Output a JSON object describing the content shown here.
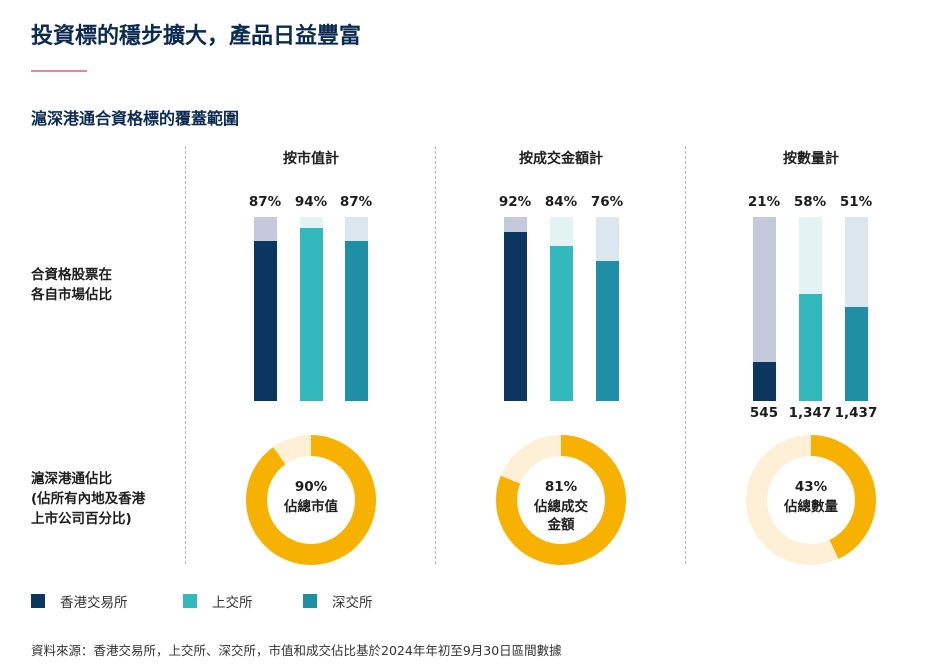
{
  "title": "投資標的穩步擴大，產品日益豐富",
  "subtitle": "滬深港通合資格標的覆蓋範圍",
  "row_labels": {
    "bars_line1": "合資格股票在",
    "bars_line2": "各自市場佔比",
    "donut_line1": "滬深港通佔比",
    "donut_line2": "(佔所有內地及香港",
    "donut_line3": "上市公司百分比)"
  },
  "legend": [
    {
      "label": "香港交易所",
      "color": "#0a365f"
    },
    {
      "label": "上交所",
      "color": "#33b9bd"
    },
    {
      "label": "深交所",
      "color": "#1f8fa6"
    }
  ],
  "chart_data": {
    "type": "bar",
    "series_names": [
      "香港交易所",
      "上交所",
      "深交所"
    ],
    "groups": [
      {
        "title": "按市值計",
        "values": [
          87,
          94,
          87
        ],
        "labels": [
          "87%",
          "94%",
          "87%"
        ],
        "counts": null,
        "donut": {
          "value": 90,
          "pct_label": "90%",
          "line1": "佔總市值",
          "line2": ""
        }
      },
      {
        "title": "按成交金額計",
        "values": [
          92,
          84,
          76
        ],
        "labels": [
          "92%",
          "84%",
          "76%"
        ],
        "counts": null,
        "donut": {
          "value": 81,
          "pct_label": "81%",
          "line1": "佔總成交",
          "line2": "金額"
        }
      },
      {
        "title": "按數量計",
        "values": [
          21,
          58,
          51
        ],
        "labels": [
          "21%",
          "58%",
          "51%"
        ],
        "counts": [
          "545",
          "1,347",
          "1,437"
        ],
        "donut": {
          "value": 43,
          "pct_label": "43%",
          "line1": "佔總數量",
          "line2": ""
        }
      }
    ],
    "ylim": [
      0,
      100
    ],
    "colors": {
      "fg": [
        "#0a365f",
        "#33b9bd",
        "#1f8fa6"
      ],
      "bg": [
        "#c4c9dc",
        "#e3f2f3",
        "#dce6ee"
      ],
      "donut_fg": "#f7b100",
      "donut_bg": "#fdf0d6"
    }
  },
  "footnote": "資料來源：香港交易所，上交所、深交所，市值和成交佔比基於2024年年初至9月30日區間數據"
}
